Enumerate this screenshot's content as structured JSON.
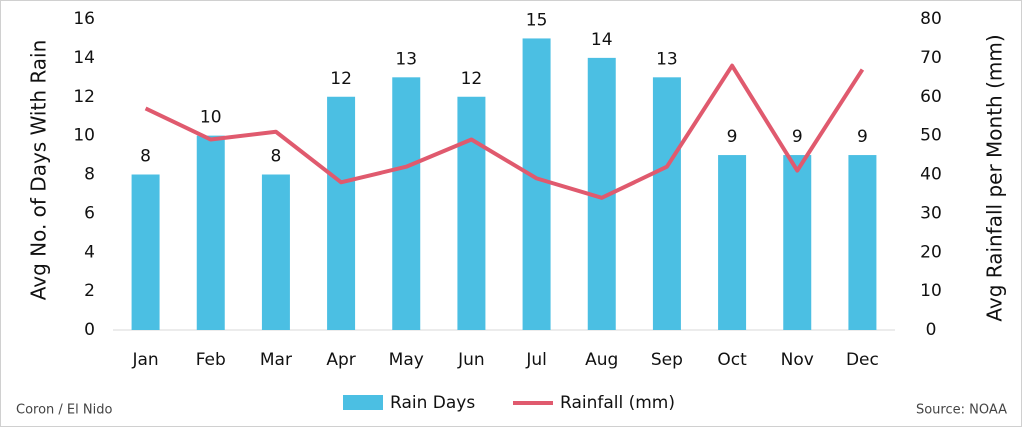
{
  "chart_data": {
    "type": "combo",
    "categories": [
      "Jan",
      "Feb",
      "Mar",
      "Apr",
      "May",
      "Jun",
      "Jul",
      "Aug",
      "Sep",
      "Oct",
      "Nov",
      "Dec"
    ],
    "series": [
      {
        "name": "Rain Days",
        "type": "bar",
        "color": "#4bbfe3",
        "values": [
          8,
          10,
          8,
          12,
          13,
          12,
          15,
          14,
          13,
          9,
          9,
          9
        ]
      },
      {
        "name": "Rainfall (mm)",
        "type": "line",
        "axis": "y2",
        "color": "#e05a6e",
        "values": [
          57,
          49,
          51,
          38,
          42,
          49,
          39,
          34,
          42,
          68,
          41,
          67
        ]
      }
    ],
    "ylabel": "Avg No. of Days With Rain",
    "y2label": "Avg Rainfall per Month (mm)",
    "ylim": [
      0,
      16
    ],
    "yticks": [
      0,
      2,
      4,
      6,
      8,
      10,
      12,
      14,
      16
    ],
    "y2lim": [
      0,
      80
    ],
    "y2ticks": [
      0,
      10,
      20,
      30,
      40,
      50,
      60,
      70,
      80
    ],
    "legend": "bottom",
    "caption": "Coron / El Nido",
    "source": "Source: NOAA"
  }
}
